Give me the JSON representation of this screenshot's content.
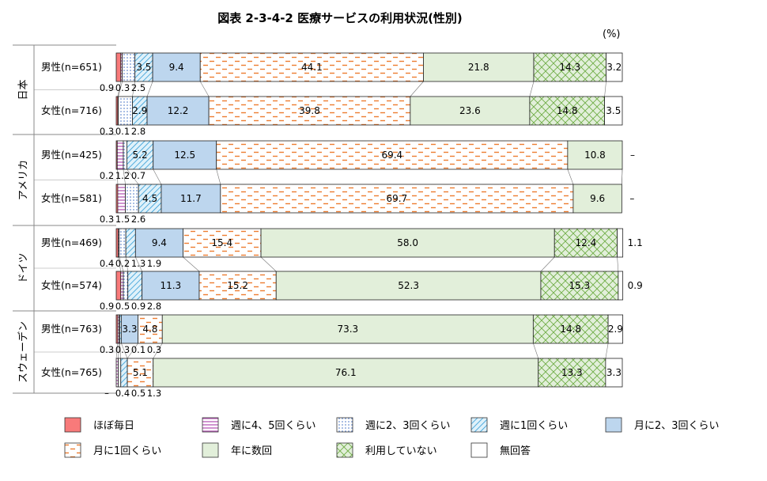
{
  "title": "図表 2-3-4-2 医療サービスの利用状況(性別)",
  "unit": "(%)",
  "colors": {
    "hobo_mainichi": "#f87a7a",
    "week45": "#e8a5e8",
    "week23": "#c9d9ee",
    "week1": "#bfe3f3",
    "month23": "#bdd6ee",
    "month1": "#fdeadb",
    "year": "#e2efda",
    "none": "#e2efda",
    "na": "#ffffff"
  },
  "chart_data": {
    "type": "bar",
    "orientation": "horizontal",
    "stacked": true,
    "xlim": [
      0,
      100
    ],
    "legend_placement": "bottom",
    "series": [
      {
        "name": "ほぼ毎日",
        "key": "hobo_mainichi"
      },
      {
        "name": "週に4、5回くらい",
        "key": "week45"
      },
      {
        "name": "週に2、3回くらい",
        "key": "week23"
      },
      {
        "name": "週に1回くらい",
        "key": "week1"
      },
      {
        "name": "月に2、3回くらい",
        "key": "month23"
      },
      {
        "name": "月に1回くらい",
        "key": "month1"
      },
      {
        "name": "年に数回",
        "key": "year"
      },
      {
        "name": "利用していない",
        "key": "none"
      },
      {
        "name": "無回答",
        "key": "na"
      }
    ],
    "groups": [
      {
        "country": "日本",
        "rows": [
          {
            "label": "男性(n=651)",
            "values": [
              0.9,
              0.3,
              2.5,
              3.5,
              9.4,
              44.1,
              21.8,
              14.3,
              3.2
            ],
            "labels": [
              "0.9",
              "0.3",
              "2.5",
              "3.5",
              "9.4",
              "44.1",
              "21.8",
              "14.3",
              "3.2"
            ]
          },
          {
            "label": "女性(n=716)",
            "values": [
              0.3,
              0.1,
              2.8,
              2.9,
              12.2,
              39.8,
              23.6,
              14.8,
              3.5
            ],
            "labels": [
              "0.3",
              "0.1",
              "2.8",
              "2.9",
              "12.2",
              "39.8",
              "23.6",
              "14.8",
              "3.5"
            ]
          }
        ]
      },
      {
        "country": "アメリカ",
        "rows": [
          {
            "label": "男性(n=425)",
            "values": [
              0.2,
              1.2,
              0.7,
              5.2,
              12.5,
              69.4,
              10.8,
              0,
              0
            ],
            "labels": [
              "0.2",
              "1.2",
              "0.7",
              "5.2",
              "12.5",
              "69.4",
              "10.8",
              "",
              "–"
            ]
          },
          {
            "label": "女性(n=581)",
            "values": [
              0.3,
              1.5,
              2.6,
              4.5,
              11.7,
              69.7,
              9.6,
              0,
              0
            ],
            "labels": [
              "0.3",
              "1.5",
              "2.6",
              "4.5",
              "11.7",
              "69.7",
              "9.6",
              "",
              "–"
            ]
          }
        ]
      },
      {
        "country": "ドイツ",
        "rows": [
          {
            "label": "男性(n=469)",
            "values": [
              0.4,
              0.2,
              1.3,
              1.9,
              9.4,
              15.4,
              58.0,
              12.4,
              1.1
            ],
            "labels": [
              "0.4",
              "0.2",
              "1.3",
              "1.9",
              "9.4",
              "15.4",
              "58.0",
              "12.4",
              "1.1"
            ]
          },
          {
            "label": "女性(n=574)",
            "values": [
              0.9,
              0.5,
              0.9,
              2.8,
              11.3,
              15.2,
              52.3,
              15.3,
              0.9
            ],
            "labels": [
              "0.9",
              "0.5",
              "0.9",
              "2.8",
              "11.3",
              "15.2",
              "52.3",
              "15.3",
              "0.9"
            ]
          }
        ]
      },
      {
        "country": "スウェーデン",
        "rows": [
          {
            "label": "男性(n=763)",
            "values": [
              0.3,
              0.3,
              0.1,
              0.3,
              3.3,
              4.8,
              73.3,
              14.8,
              2.9
            ],
            "labels": [
              "0.3",
              "0.3",
              "0.1",
              "0.3",
              "3.3",
              "4.8",
              "73.3",
              "14.8",
              "2.9"
            ]
          },
          {
            "label": "女性(n=765)",
            "values": [
              0,
              0.4,
              0.5,
              1.3,
              0,
              5.1,
              76.1,
              13.3,
              3.3
            ],
            "labels": [
              "–",
              "0.4",
              "0.5",
              "1.3",
              "",
              "5.1",
              "76.1",
              "13.3",
              "3.3"
            ]
          }
        ]
      }
    ]
  }
}
